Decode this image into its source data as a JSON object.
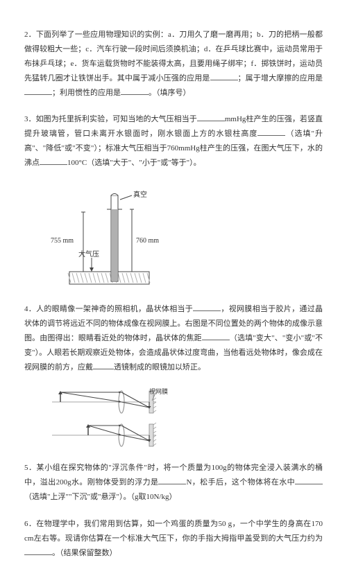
{
  "q2": {
    "prefix": "2．下面列举了一些应用物理知识的实例：a．刀用久了磨一磨再用；b．刀的把柄一般都做得较粗大一些；c．汽车行驶一段时间后须换机油；d．在乒乓球比赛中，运动员常用于布抹乒乓球；e．货车运载货物时不能装得太高，且要用绳子绑牢；f．掷铁饼时，运动员先猛转几圈才让铁饼出手。其中属于减小压强的应用是",
    "mid1": "；属于增大摩擦的应用是",
    "mid2": "；利用惯性的应用是",
    "suffix": "。（填序号）"
  },
  "q3": {
    "prefix": "3．如图为托里拆利实验，可知当地的大气压相当于",
    "seg1": "mmHg柱产生的压强，若竖直提升玻璃管，管口未离开水银面时，刚水银面上方的水银柱高度",
    "seg2": "（选填\"升高\"、\"降低\"或\"不变\"）；标准大气压相当于760mmHg柱产生的压强，在图大气压下，水的沸点",
    "seg3": "100°C（选填\"大于\"、\"小于\"或\"等于\"）。"
  },
  "fig3": {
    "label_vacuum": "真空",
    "label_755": "755 mm",
    "label_760": "760 mm",
    "label_atm": "大气压",
    "tube_color": "#888",
    "mercury_color": "#b0b0b0",
    "text_fontsize": 10,
    "width": 170,
    "height": 160
  },
  "q4": {
    "prefix": "4．人的眼睛像一架神奇的照相机，晶状体相当于",
    "seg1": "，视网膜相当于胶片，通过晶状体的调节将远近不同的物体成像在视网膜上。右图是不同位置处的两个物体的成像示意图。由图得出：眼睛看近处的物体时，晶状体的焦距",
    "seg2": "（选填\"变大\"、\"变小\"或\"不变\"）。人眼若长期观察近处物体，会造成晶状体过度弯曲，当他看远处物体时，像会成在视网膜的前方，应戴",
    "seg3": "透镜制成的眼镜加以矫正。"
  },
  "fig4": {
    "lens_color": "#999",
    "ray_color": "#444",
    "label": "视网膜",
    "width": 180,
    "height": 95
  },
  "q5": {
    "prefix": "5．某小组在探究物体的\"浮沉条件\"时，将一个质量为100g的物体完全浸入装满水的桶中，溢出200g水。刚物体受到的浮力是",
    "seg1": "N，松手后，这个物体将在水中",
    "seg2": "（选填\"上浮\"\"下沉\"或\"悬浮\"）。（g取10N/kg）"
  },
  "q6": {
    "prefix": "6．在物理学中，我们常用到估算，如一个鸡蛋的质量为50 g，一个中学生的身高在170 cm左右等。现请你估算在一个标准大气压下，你的手指大拇指甲盖受到的大气压力约为",
    "seg1": "。（结果保留整数）"
  }
}
